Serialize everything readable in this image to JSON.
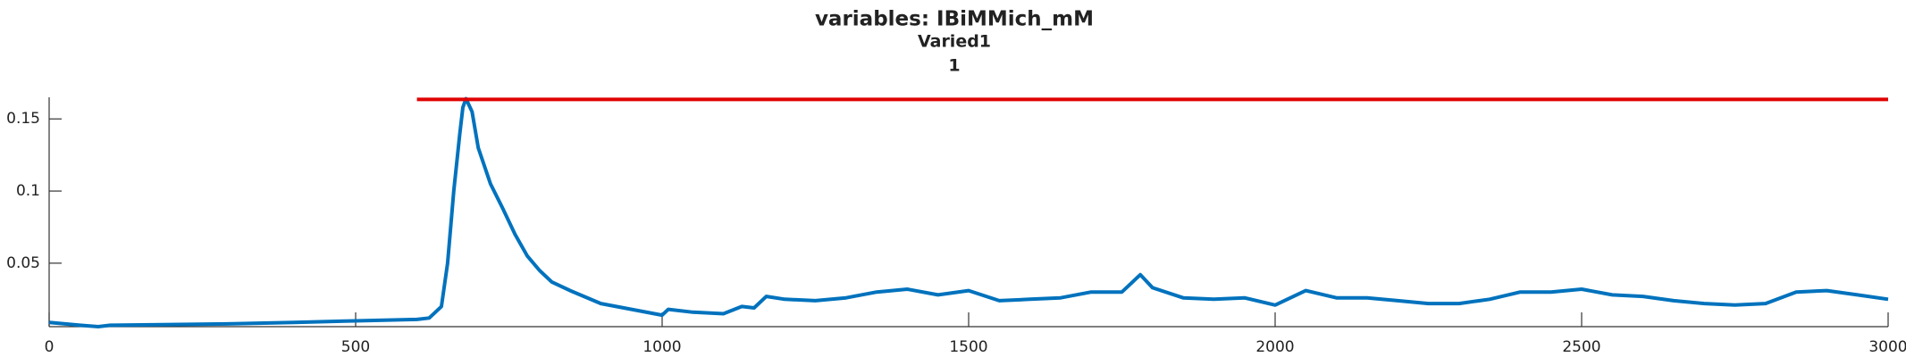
{
  "chart_data": {
    "type": "line",
    "title": "variables: IBiMMich_mM",
    "subtitle": "Varied1",
    "annotation": "1",
    "series": [
      {
        "color": "#0072bd",
        "x": [
          0,
          50,
          80,
          100,
          200,
          300,
          400,
          500,
          600,
          620,
          640,
          650,
          660,
          670,
          675,
          680,
          690,
          700,
          720,
          740,
          760,
          780,
          800,
          820,
          850,
          900,
          950,
          1000,
          1010,
          1050,
          1100,
          1130,
          1150,
          1170,
          1200,
          1250,
          1300,
          1350,
          1400,
          1450,
          1500,
          1550,
          1600,
          1650,
          1700,
          1750,
          1780,
          1800,
          1850,
          1900,
          1950,
          2000,
          2050,
          2100,
          2150,
          2200,
          2250,
          2300,
          2350,
          2400,
          2450,
          2500,
          2550,
          2600,
          2650,
          2700,
          2750,
          2800,
          2850,
          2900,
          2950,
          3000
        ],
        "values": [
          0.009,
          0.007,
          0.006,
          0.007,
          0.0075,
          0.008,
          0.009,
          0.01,
          0.011,
          0.012,
          0.02,
          0.05,
          0.1,
          0.14,
          0.158,
          0.164,
          0.155,
          0.13,
          0.105,
          0.088,
          0.07,
          0.055,
          0.045,
          0.037,
          0.031,
          0.022,
          0.018,
          0.014,
          0.018,
          0.016,
          0.015,
          0.02,
          0.019,
          0.027,
          0.025,
          0.024,
          0.026,
          0.03,
          0.032,
          0.028,
          0.031,
          0.024,
          0.025,
          0.026,
          0.03,
          0.03,
          0.042,
          0.033,
          0.026,
          0.025,
          0.026,
          0.021,
          0.031,
          0.026,
          0.026,
          0.024,
          0.022,
          0.022,
          0.025,
          0.03,
          0.03,
          0.032,
          0.028,
          0.027,
          0.024,
          0.022,
          0.021,
          0.022,
          0.03,
          0.031,
          0.028,
          0.025
        ]
      },
      {
        "color": "#e00000",
        "x": [
          600,
          3000
        ],
        "values": [
          0.1635,
          0.1635
        ]
      }
    ],
    "xlim": [
      0,
      3000
    ],
    "xticks": [
      0,
      500,
      1000,
      1500,
      2000,
      2500,
      3000
    ],
    "ylim": [
      0.006,
      0.165
    ],
    "yticks": [
      0.05,
      0.1,
      0.15
    ]
  }
}
